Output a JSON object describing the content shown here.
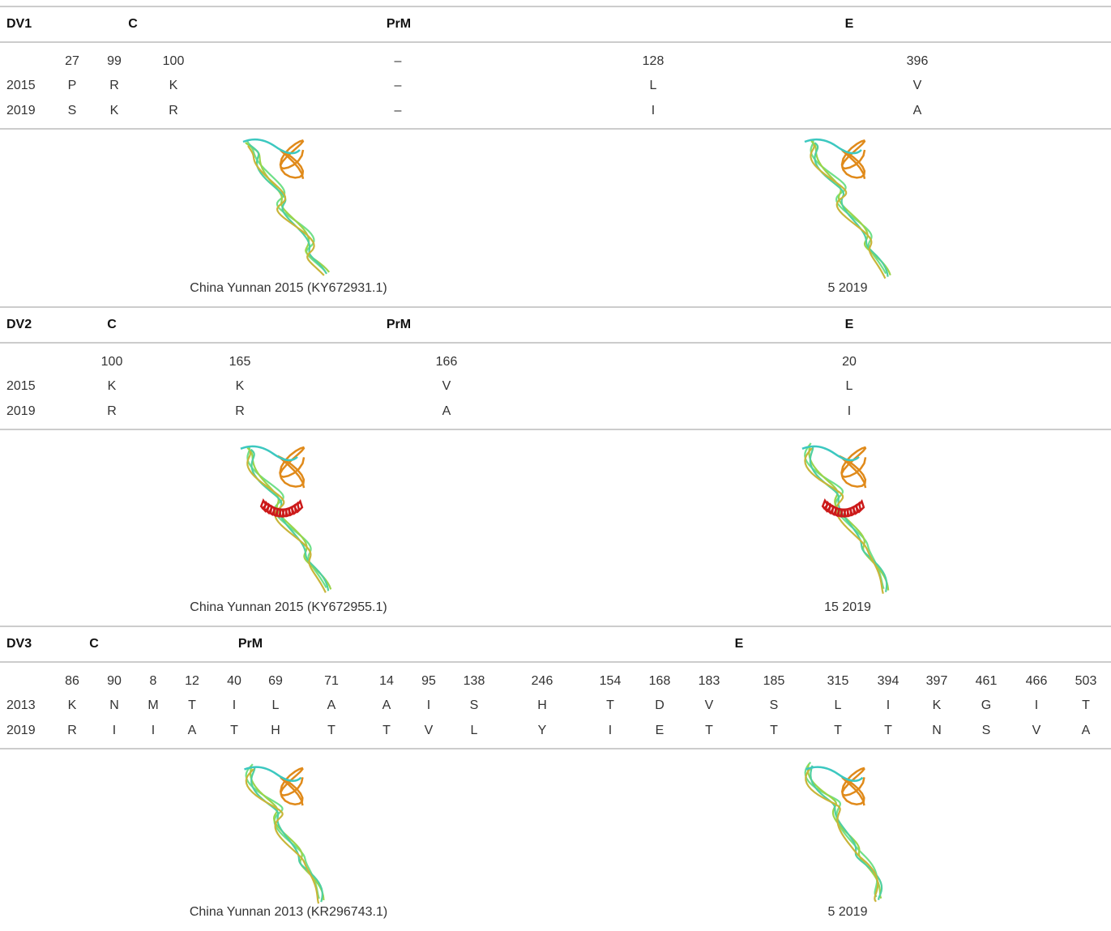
{
  "sections": [
    {
      "header": {
        "serotype": "DV1",
        "genes": [
          "C",
          "PrM",
          "E"
        ]
      },
      "positions": [
        27,
        99,
        100,
        "–",
        128,
        396
      ],
      "rows": [
        {
          "year": 2015,
          "residues": [
            "P",
            "R",
            "K",
            "–",
            "L",
            "V"
          ]
        },
        {
          "year": 2019,
          "residues": [
            "S",
            "K",
            "R",
            "–",
            "I",
            "A"
          ]
        }
      ],
      "structures": [
        {
          "caption": "China Yunnan 2015 (KY672931.1)"
        },
        {
          "caption": "5 2019"
        }
      ]
    },
    {
      "header": {
        "serotype": "DV2",
        "genes": [
          "C",
          "PrM",
          "E"
        ]
      },
      "positions": [
        100,
        165,
        166,
        20
      ],
      "rows": [
        {
          "year": 2015,
          "residues": [
            "K",
            "K",
            "V",
            "L"
          ]
        },
        {
          "year": 2019,
          "residues": [
            "R",
            "R",
            "A",
            "I"
          ]
        }
      ],
      "structures": [
        {
          "caption": "China Yunnan 2015 (KY672955.1)"
        },
        {
          "caption": "15 2019"
        }
      ]
    },
    {
      "header": {
        "serotype": "DV3",
        "genes": [
          "C",
          "PrM",
          "E"
        ]
      },
      "positions": [
        86,
        90,
        8,
        12,
        40,
        69,
        71,
        14,
        95,
        138,
        246,
        154,
        168,
        183,
        185,
        315,
        394,
        397,
        461,
        466,
        503
      ],
      "rows": [
        {
          "year": 2013,
          "residues": [
            "K",
            "N",
            "M",
            "T",
            "I",
            "L",
            "A",
            "A",
            "I",
            "S",
            "H",
            "T",
            "D",
            "V",
            "S",
            "L",
            "I",
            "K",
            "G",
            "I",
            "T"
          ]
        },
        {
          "year": 2019,
          "residues": [
            "R",
            "I",
            "I",
            "A",
            "T",
            "H",
            "T",
            "T",
            "V",
            "L",
            "Y",
            "I",
            "E",
            "T",
            "T",
            "T",
            "T",
            "N",
            "S",
            "V",
            "A"
          ]
        }
      ],
      "structures": [
        {
          "caption": "China Yunnan 2013 (KR296743.1)"
        },
        {
          "caption": "5 2019"
        }
      ]
    }
  ]
}
